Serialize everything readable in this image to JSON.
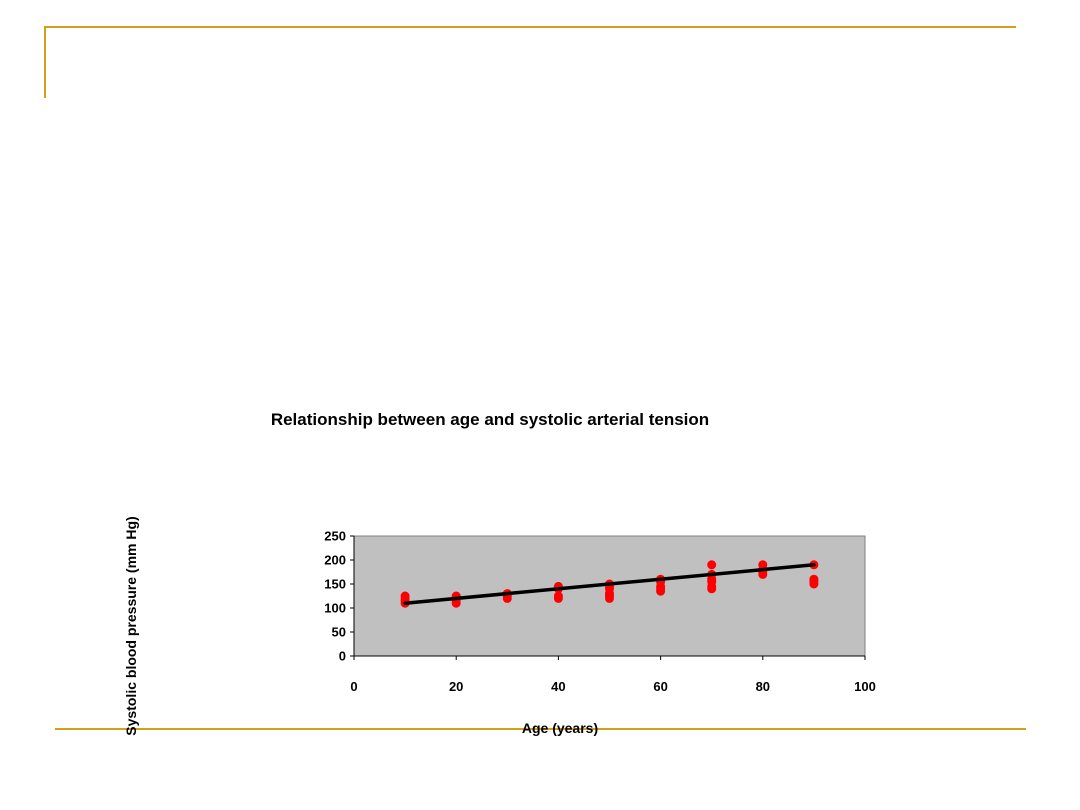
{
  "chart_data": {
    "type": "scatter",
    "title": "Relationship between age and systolic arterial tension",
    "xlabel": "Age (years)",
    "ylabel": "Systolic blood pressure (mm Hg)",
    "xlim": [
      0,
      100
    ],
    "ylim": [
      0,
      250
    ],
    "xticks": [
      "0",
      "20",
      "40",
      "60",
      "80",
      "100"
    ],
    "yticks": [
      "0",
      "50",
      "100",
      "150",
      "200",
      "250"
    ],
    "grid": false,
    "legend": "none",
    "plot_background": "#c0c0c0",
    "point_color": "#ff0000",
    "trend_color": "#000000",
    "points": [
      {
        "x": 10,
        "y": 110
      },
      {
        "x": 10,
        "y": 115
      },
      {
        "x": 10,
        "y": 120
      },
      {
        "x": 10,
        "y": 125
      },
      {
        "x": 20,
        "y": 110
      },
      {
        "x": 20,
        "y": 115
      },
      {
        "x": 20,
        "y": 120
      },
      {
        "x": 20,
        "y": 125
      },
      {
        "x": 30,
        "y": 120
      },
      {
        "x": 30,
        "y": 125
      },
      {
        "x": 30,
        "y": 130
      },
      {
        "x": 40,
        "y": 120
      },
      {
        "x": 40,
        "y": 125
      },
      {
        "x": 40,
        "y": 140
      },
      {
        "x": 40,
        "y": 145
      },
      {
        "x": 50,
        "y": 120
      },
      {
        "x": 50,
        "y": 125
      },
      {
        "x": 50,
        "y": 130
      },
      {
        "x": 50,
        "y": 140
      },
      {
        "x": 50,
        "y": 145
      },
      {
        "x": 50,
        "y": 150
      },
      {
        "x": 60,
        "y": 135
      },
      {
        "x": 60,
        "y": 140
      },
      {
        "x": 60,
        "y": 145
      },
      {
        "x": 60,
        "y": 155
      },
      {
        "x": 60,
        "y": 160
      },
      {
        "x": 70,
        "y": 140
      },
      {
        "x": 70,
        "y": 145
      },
      {
        "x": 70,
        "y": 155
      },
      {
        "x": 70,
        "y": 160
      },
      {
        "x": 70,
        "y": 170
      },
      {
        "x": 70,
        "y": 190
      },
      {
        "x": 80,
        "y": 170
      },
      {
        "x": 80,
        "y": 175
      },
      {
        "x": 80,
        "y": 180
      },
      {
        "x": 80,
        "y": 190
      },
      {
        "x": 90,
        "y": 150
      },
      {
        "x": 90,
        "y": 155
      },
      {
        "x": 90,
        "y": 160
      },
      {
        "x": 90,
        "y": 190
      }
    ],
    "trendline": [
      {
        "x": 10,
        "y": 110
      },
      {
        "x": 90,
        "y": 190
      }
    ]
  }
}
